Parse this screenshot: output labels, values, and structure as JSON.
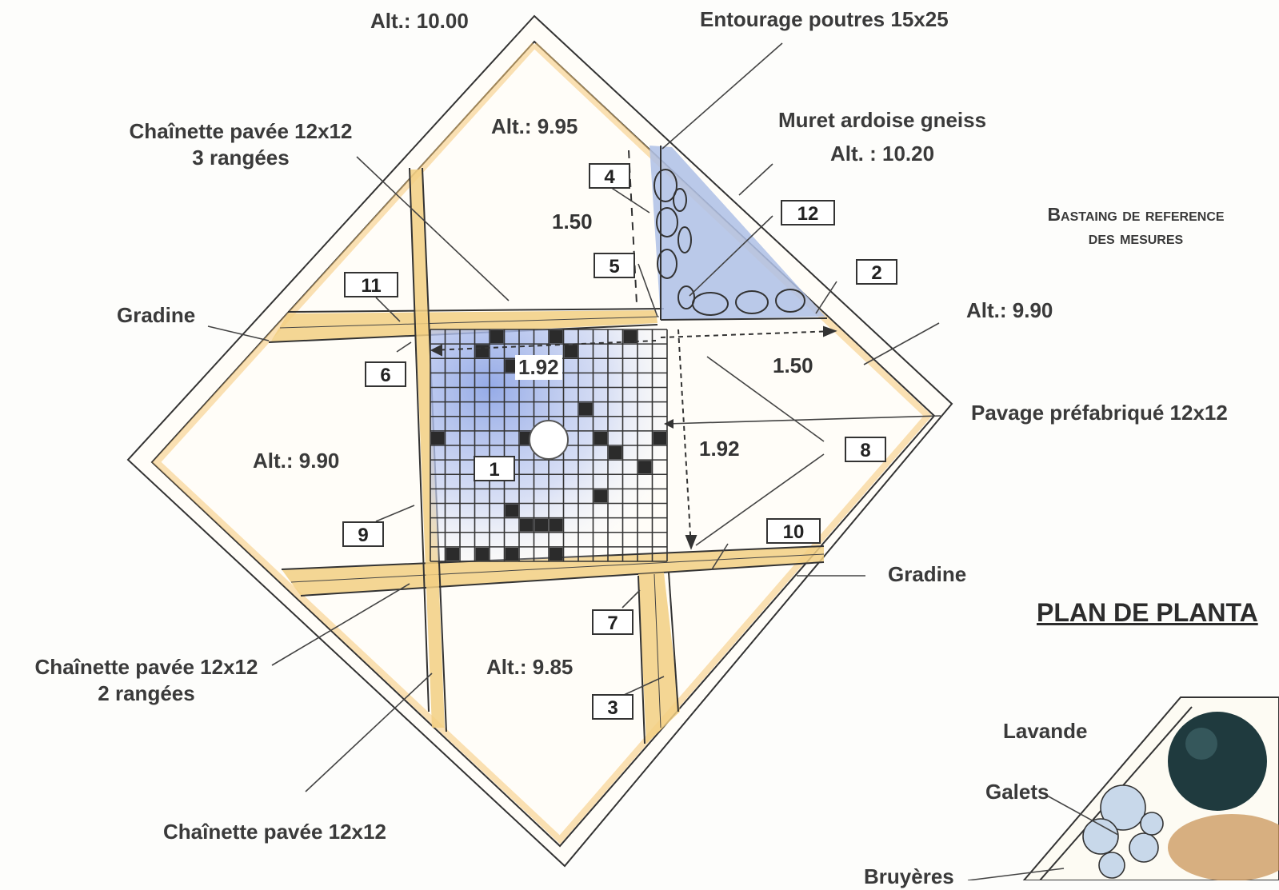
{
  "labels": {
    "alt_top": "Alt.: 10.00",
    "entourage": "Entourage poutres 15x25",
    "chainette_3_line1": "Chaînette pavée 12x12",
    "chainette_3_line2": "3 rangées",
    "alt_995": "Alt.: 9.95",
    "muret": "Muret ardoise gneiss",
    "alt_1020": "Alt. : 10.20",
    "bastaing_line1": "Bastaing de reference",
    "bastaing_line2": "des mesures",
    "gradine_left": "Gradine",
    "alt_990_right": "Alt.: 9.90",
    "pavage": "Pavage préfabriqué 12x12",
    "alt_990_left": "Alt.: 9.90",
    "gradine_right": "Gradine",
    "title_plantation": "PLAN DE PLANTA",
    "chainette_2_line1": "Chaînette pavée 12x12",
    "chainette_2_line2": "2 rangées",
    "alt_985": "Alt.: 9.85",
    "chainette_bottom": "Chaînette pavée 12x12",
    "lavande": "Lavande",
    "galets": "Galets",
    "bruyeres": "Bruyères"
  },
  "dimensions": {
    "d150_top": "1.50",
    "d192_top": "1.92",
    "d150_right": "1.50",
    "d192_right": "1.92"
  },
  "markers": [
    "1",
    "2",
    "3",
    "4",
    "5",
    "6",
    "7",
    "8",
    "9",
    "10",
    "11",
    "12"
  ],
  "colors": {
    "beam": "#f2cf83",
    "stone": "#aebfe6",
    "paving_blue": "#9fb4ea",
    "dark_tile": "#2b2b2b",
    "ink": "#333333"
  }
}
